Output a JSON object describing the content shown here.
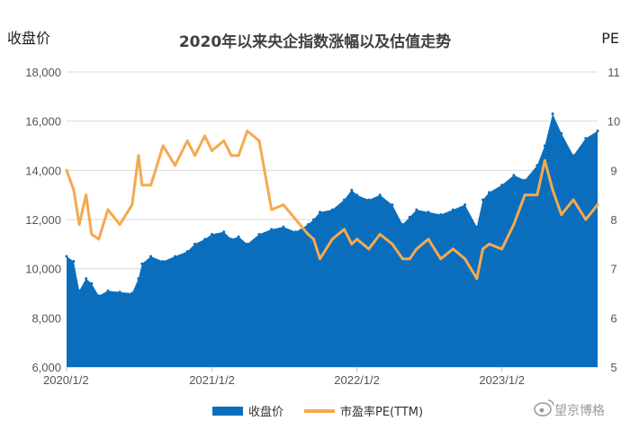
{
  "chart_data": {
    "type": "area+line",
    "title": "2020年以来央企指数涨幅以及估值走势",
    "y_left_label": "收盘价",
    "y_right_label": "PE",
    "y_left_ticks": [
      "6,000",
      "8,000",
      "10,000",
      "12,000",
      "14,000",
      "16,000",
      "18,000"
    ],
    "y_right_ticks": [
      "5",
      "6",
      "7",
      "8",
      "9",
      "10",
      "11"
    ],
    "y_left_range": [
      6000,
      18000
    ],
    "y_right_range": [
      5,
      11
    ],
    "x_ticks": [
      "2020/1/2",
      "2021/1/2",
      "2022/1/2",
      "2023/1/2"
    ],
    "x_range": [
      "2020/1/2",
      "2023/8/31"
    ],
    "series": [
      {
        "name": "收盘价",
        "type": "area",
        "color": "#0a6ebd",
        "x": [
          "2020/1/2",
          "2020/1/20",
          "2020/2/3",
          "2020/2/20",
          "2020/3/5",
          "2020/3/23",
          "2020/4/15",
          "2020/5/15",
          "2020/6/15",
          "2020/7/1",
          "2020/7/10",
          "2020/8/1",
          "2020/9/1",
          "2020/10/1",
          "2020/11/1",
          "2020/11/20",
          "2020/12/15",
          "2021/1/2",
          "2021/2/1",
          "2021/2/20",
          "2021/3/10",
          "2021/4/1",
          "2021/5/1",
          "2021/6/1",
          "2021/7/1",
          "2021/8/1",
          "2021/9/1",
          "2021/9/15",
          "2021/10/1",
          "2021/11/1",
          "2021/12/1",
          "2021/12/20",
          "2022/1/2",
          "2022/2/1",
          "2022/3/1",
          "2022/4/1",
          "2022/4/27",
          "2022/5/15",
          "2022/6/1",
          "2022/7/1",
          "2022/8/1",
          "2022/9/1",
          "2022/10/1",
          "2022/10/31",
          "2022/11/15",
          "2022/12/1",
          "2023/1/2",
          "2023/2/1",
          "2023/3/1",
          "2023/4/1",
          "2023/4/20",
          "2023/5/10",
          "2023/6/1",
          "2023/7/1",
          "2023/8/1",
          "2023/8/31"
        ],
        "values": [
          10500,
          10300,
          9100,
          9600,
          9400,
          8900,
          9100,
          9050,
          9000,
          9600,
          10200,
          10500,
          10300,
          10500,
          10700,
          11000,
          11200,
          11400,
          11500,
          11200,
          11300,
          11000,
          11400,
          11600,
          11700,
          11500,
          11800,
          12000,
          12300,
          12400,
          12800,
          13200,
          13000,
          12800,
          13000,
          12600,
          11800,
          12100,
          12400,
          12300,
          12200,
          12400,
          12600,
          11700,
          12800,
          13100,
          13400,
          13800,
          13600,
          14200,
          15000,
          16300,
          15500,
          14600,
          15300,
          15600
        ]
      },
      {
        "name": "市盈率PE(TTM)",
        "type": "line",
        "color": "#f5a94e",
        "x": [
          "2020/1/2",
          "2020/1/20",
          "2020/2/3",
          "2020/2/20",
          "2020/3/5",
          "2020/3/23",
          "2020/4/15",
          "2020/5/15",
          "2020/6/15",
          "2020/7/1",
          "2020/7/10",
          "2020/8/1",
          "2020/9/1",
          "2020/10/1",
          "2020/11/1",
          "2020/11/20",
          "2020/12/15",
          "2021/1/2",
          "2021/2/1",
          "2021/2/20",
          "2021/3/10",
          "2021/4/1",
          "2021/5/1",
          "2021/6/1",
          "2021/7/1",
          "2021/8/1",
          "2021/9/1",
          "2021/9/15",
          "2021/10/1",
          "2021/11/1",
          "2021/12/1",
          "2021/12/20",
          "2022/1/2",
          "2022/2/1",
          "2022/3/1",
          "2022/4/1",
          "2022/4/27",
          "2022/5/15",
          "2022/6/1",
          "2022/7/1",
          "2022/8/1",
          "2022/9/1",
          "2022/10/1",
          "2022/10/31",
          "2022/11/15",
          "2022/12/1",
          "2023/1/2",
          "2023/2/1",
          "2023/3/1",
          "2023/4/1",
          "2023/4/20",
          "2023/5/10",
          "2023/6/1",
          "2023/7/1",
          "2023/8/1",
          "2023/8/31"
        ],
        "values": [
          9.0,
          8.6,
          7.9,
          8.5,
          7.7,
          7.6,
          8.2,
          7.9,
          8.3,
          9.3,
          8.7,
          8.7,
          9.5,
          9.1,
          9.6,
          9.3,
          9.7,
          9.4,
          9.6,
          9.3,
          9.3,
          9.8,
          9.6,
          8.2,
          8.3,
          8.0,
          7.7,
          7.6,
          7.2,
          7.6,
          7.8,
          7.5,
          7.6,
          7.4,
          7.7,
          7.5,
          7.2,
          7.2,
          7.4,
          7.6,
          7.2,
          7.4,
          7.2,
          6.8,
          7.4,
          7.5,
          7.4,
          7.9,
          8.5,
          8.5,
          9.2,
          8.6,
          8.1,
          8.4,
          8.0,
          8.3
        ]
      }
    ],
    "legend_position": "bottom",
    "grid": true
  },
  "watermark": "望京博格"
}
